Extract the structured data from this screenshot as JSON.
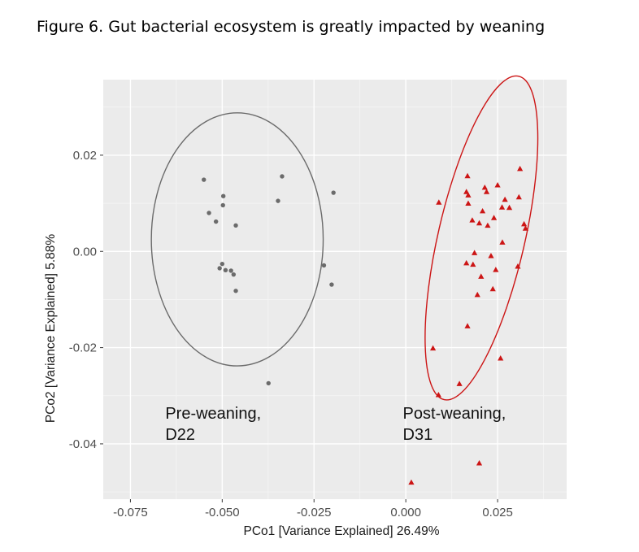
{
  "figure_title": "Figure 6. Gut bacterial ecosystem is greatly impacted by weaning",
  "chart_data": {
    "type": "scatter",
    "title": "",
    "xlabel": "PCo1 [Variance Explained] 26.49%",
    "ylabel": "PCo2 [Variance Explained] 5.88%",
    "xlim": [
      -0.0824,
      0.0438
    ],
    "ylim": [
      -0.0515,
      0.0357
    ],
    "x_ticks": [
      -0.075,
      -0.05,
      -0.025,
      0.0,
      0.025
    ],
    "x_tick_labels": [
      "-0.075",
      "-0.050",
      "-0.025",
      "0.000",
      "0.025"
    ],
    "y_ticks": [
      -0.04,
      -0.02,
      0.0,
      0.02
    ],
    "y_tick_labels": [
      "-0.04",
      "-0.02",
      "0.00",
      "0.02"
    ],
    "grid": true,
    "background": "#ebebeb",
    "annotations": [
      {
        "lines": [
          "Pre-weaning,",
          "D22"
        ],
        "x": -0.0655,
        "y": -0.0348
      },
      {
        "lines": [
          "Post-weaning,",
          "D31"
        ],
        "x": -0.0008,
        "y": -0.0348
      }
    ],
    "series": [
      {
        "group": "pre",
        "color": "#6b6b6b",
        "marker": "circle",
        "ellipse": {
          "cx": -0.0459,
          "cy": 0.0025,
          "rx": 0.0234,
          "ry": 0.0263,
          "angle_deg": 0
        },
        "points": [
          [
            -0.055,
            0.0149
          ],
          [
            -0.0337,
            0.0156
          ],
          [
            -0.0497,
            0.0115
          ],
          [
            -0.0498,
            0.0096
          ],
          [
            -0.0348,
            0.0105
          ],
          [
            -0.0197,
            0.0122
          ],
          [
            -0.0536,
            0.008
          ],
          [
            -0.0517,
            0.0062
          ],
          [
            -0.0463,
            0.0054
          ],
          [
            -0.05,
            -0.0026
          ],
          [
            -0.0507,
            -0.0035
          ],
          [
            -0.0491,
            -0.0039
          ],
          [
            -0.0476,
            -0.004
          ],
          [
            -0.0469,
            -0.0048
          ],
          [
            -0.0463,
            -0.0082
          ],
          [
            -0.0223,
            -0.0029
          ],
          [
            -0.0202,
            -0.0069
          ],
          [
            -0.0374,
            -0.0274
          ]
        ]
      },
      {
        "group": "post",
        "color": "#cc1515",
        "marker": "triangle",
        "ellipse": {
          "cx": 0.0206,
          "cy": 0.0028,
          "rx": 0.0118,
          "ry": 0.0345,
          "angle_deg": 13
        },
        "points": [
          [
            0.0168,
            0.0157
          ],
          [
            0.0311,
            0.0172
          ],
          [
            0.0165,
            0.0124
          ],
          [
            0.0215,
            0.0133
          ],
          [
            0.025,
            0.0138
          ],
          [
            0.017,
            0.0117
          ],
          [
            0.022,
            0.0124
          ],
          [
            0.009,
            0.0102
          ],
          [
            0.027,
            0.0108
          ],
          [
            0.0308,
            0.0113
          ],
          [
            0.017,
            0.01
          ],
          [
            0.0262,
            0.0092
          ],
          [
            0.0282,
            0.0091
          ],
          [
            0.0209,
            0.0084
          ],
          [
            0.024,
            0.007
          ],
          [
            0.0181,
            0.0065
          ],
          [
            0.02,
            0.0059
          ],
          [
            0.0322,
            0.0057
          ],
          [
            0.0223,
            0.0054
          ],
          [
            0.0326,
            0.0048
          ],
          [
            0.0263,
            0.0019
          ],
          [
            0.0187,
            -0.0003
          ],
          [
            0.0232,
            -0.0009
          ],
          [
            0.0165,
            -0.0024
          ],
          [
            0.0183,
            -0.0027
          ],
          [
            0.0305,
            -0.0031
          ],
          [
            0.0245,
            -0.0038
          ],
          [
            0.0205,
            -0.0052
          ],
          [
            0.0237,
            -0.0078
          ],
          [
            0.0195,
            -0.009
          ],
          [
            0.0168,
            -0.0155
          ],
          [
            0.0074,
            -0.0201
          ],
          [
            0.0258,
            -0.0222
          ],
          [
            0.0146,
            -0.0275
          ],
          [
            0.0089,
            -0.0298
          ],
          [
            0.02,
            -0.044
          ],
          [
            0.0015,
            -0.048
          ]
        ]
      }
    ]
  }
}
